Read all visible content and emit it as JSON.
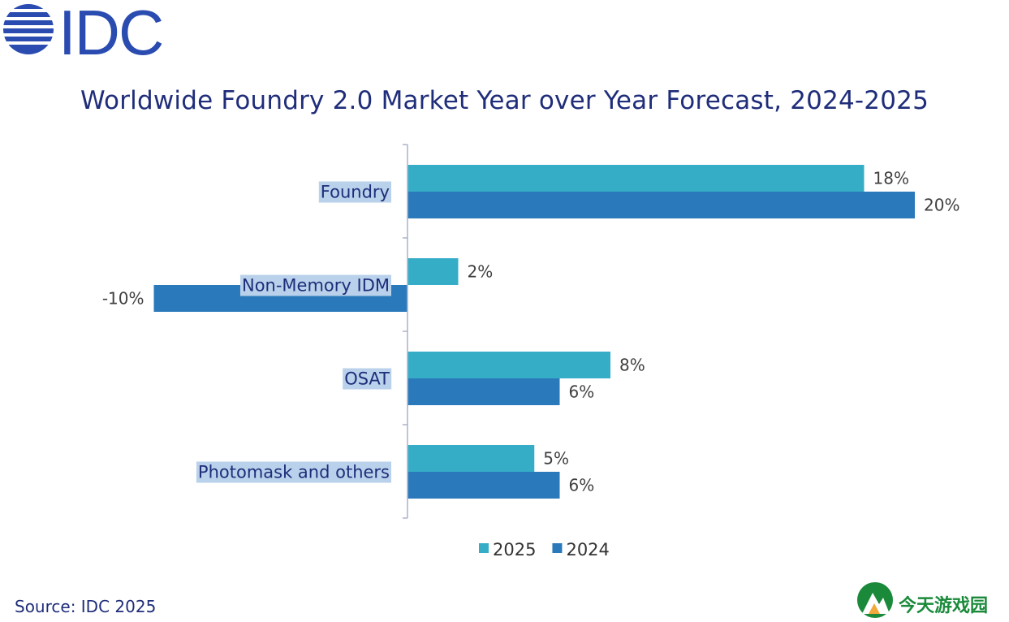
{
  "logo": {
    "text": "IDC",
    "color": "#2a4bb0"
  },
  "source": "Source: IDC 2025",
  "watermark": {
    "text": "今天游戏园",
    "color": "#1a8a3a"
  },
  "chart_data": {
    "type": "bar",
    "orientation": "horizontal",
    "title": "Worldwide Foundry 2.0 Market Year over Year Forecast, 2024-2025",
    "categories": [
      "Foundry",
      "Non-Memory IDM",
      "OSAT",
      "Photomask and others"
    ],
    "series": [
      {
        "name": "2025",
        "color": "#36adc7",
        "values": [
          18,
          2,
          8,
          5
        ],
        "labels": [
          "18%",
          "2%",
          "8%",
          "5%"
        ]
      },
      {
        "name": "2024",
        "color": "#2a7abb",
        "values": [
          20,
          -10,
          6,
          6
        ],
        "labels": [
          "20%",
          "-10%",
          "6%",
          "6%"
        ]
      }
    ],
    "xlim": [
      -10,
      20
    ],
    "legend_position": "bottom",
    "grid": false
  }
}
